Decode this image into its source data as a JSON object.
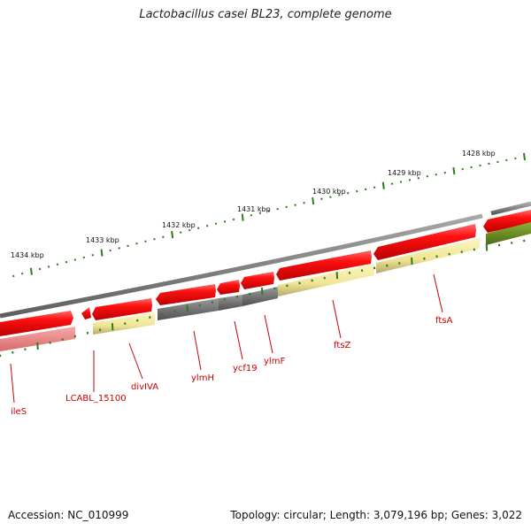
{
  "title": "Lactobacillus casei BL23, complete genome",
  "footer": {
    "accession": "Accession: NC_010999",
    "topology": "Topology: circular; Length: 3,079,196 bp; Genes: 3,022"
  },
  "scale_labels": [
    "1434 kbp",
    "1433 kbp",
    "1432 kbp",
    "1431 kbp",
    "1430 kbp",
    "1429 kbp",
    "1428 kbp"
  ],
  "gene_labels": [
    "ileS",
    "LCABL_15100",
    "divIVA",
    "ylmH",
    "ycf19",
    "ylmF",
    "ftsZ",
    "ftsA"
  ],
  "colors": {
    "backbone": "#7a7a7a",
    "forward_red": "#ee0000",
    "light_red": "#f08a8a",
    "yellow": "#f2e9a0",
    "gray_gene": "#6e6e6e",
    "green_gene": "#6f8f23",
    "tick_green": "#2e7d1a",
    "label_red": "#cc0000"
  }
}
